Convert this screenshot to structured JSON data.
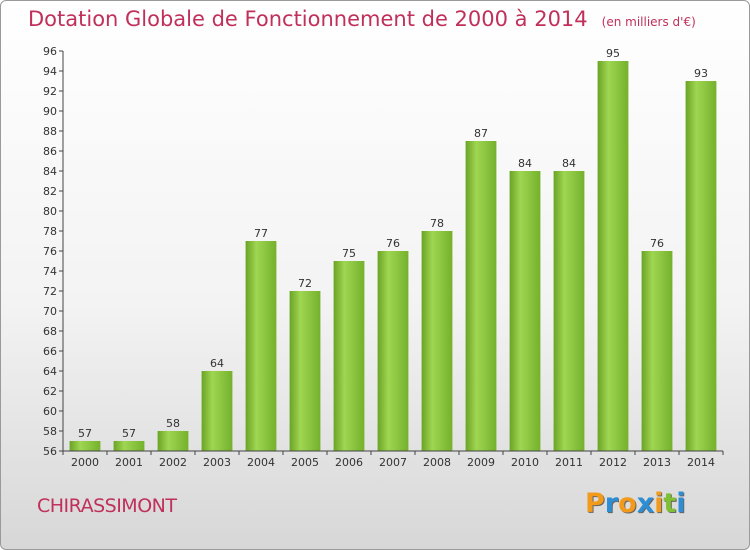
{
  "chart_data": {
    "type": "bar",
    "title": "Dotation Globale de Fonctionnement de 2000 à 2014",
    "subtitle": "(en milliers d'€)",
    "categories": [
      "2000",
      "2001",
      "2002",
      "2003",
      "2004",
      "2005",
      "2006",
      "2007",
      "2008",
      "2009",
      "2010",
      "2011",
      "2012",
      "2013",
      "2014"
    ],
    "values": [
      57,
      57,
      58,
      64,
      77,
      72,
      75,
      76,
      78,
      87,
      84,
      84,
      95,
      76,
      93
    ],
    "ylim": [
      56,
      96
    ],
    "yticks": [
      56,
      58,
      60,
      62,
      64,
      66,
      68,
      70,
      72,
      74,
      76,
      78,
      80,
      82,
      84,
      86,
      88,
      90,
      92,
      94,
      96
    ],
    "grid": false,
    "bar_color": "#7fbf32",
    "bar_highlight_color": "#9fd652"
  },
  "footer": {
    "commune": "CHIRASSIMONT",
    "logo_letters": [
      "P",
      "r",
      "o",
      "x",
      "i",
      "t",
      "i"
    ],
    "logo_colors": [
      "#f29a1c",
      "#2c8fd6",
      "#f29a1c",
      "#2c8fd6",
      "#f29a1c",
      "#7fbf32",
      "#2c8fd6"
    ]
  },
  "colors": {
    "title": "#c0305a",
    "axis": "#444444"
  }
}
